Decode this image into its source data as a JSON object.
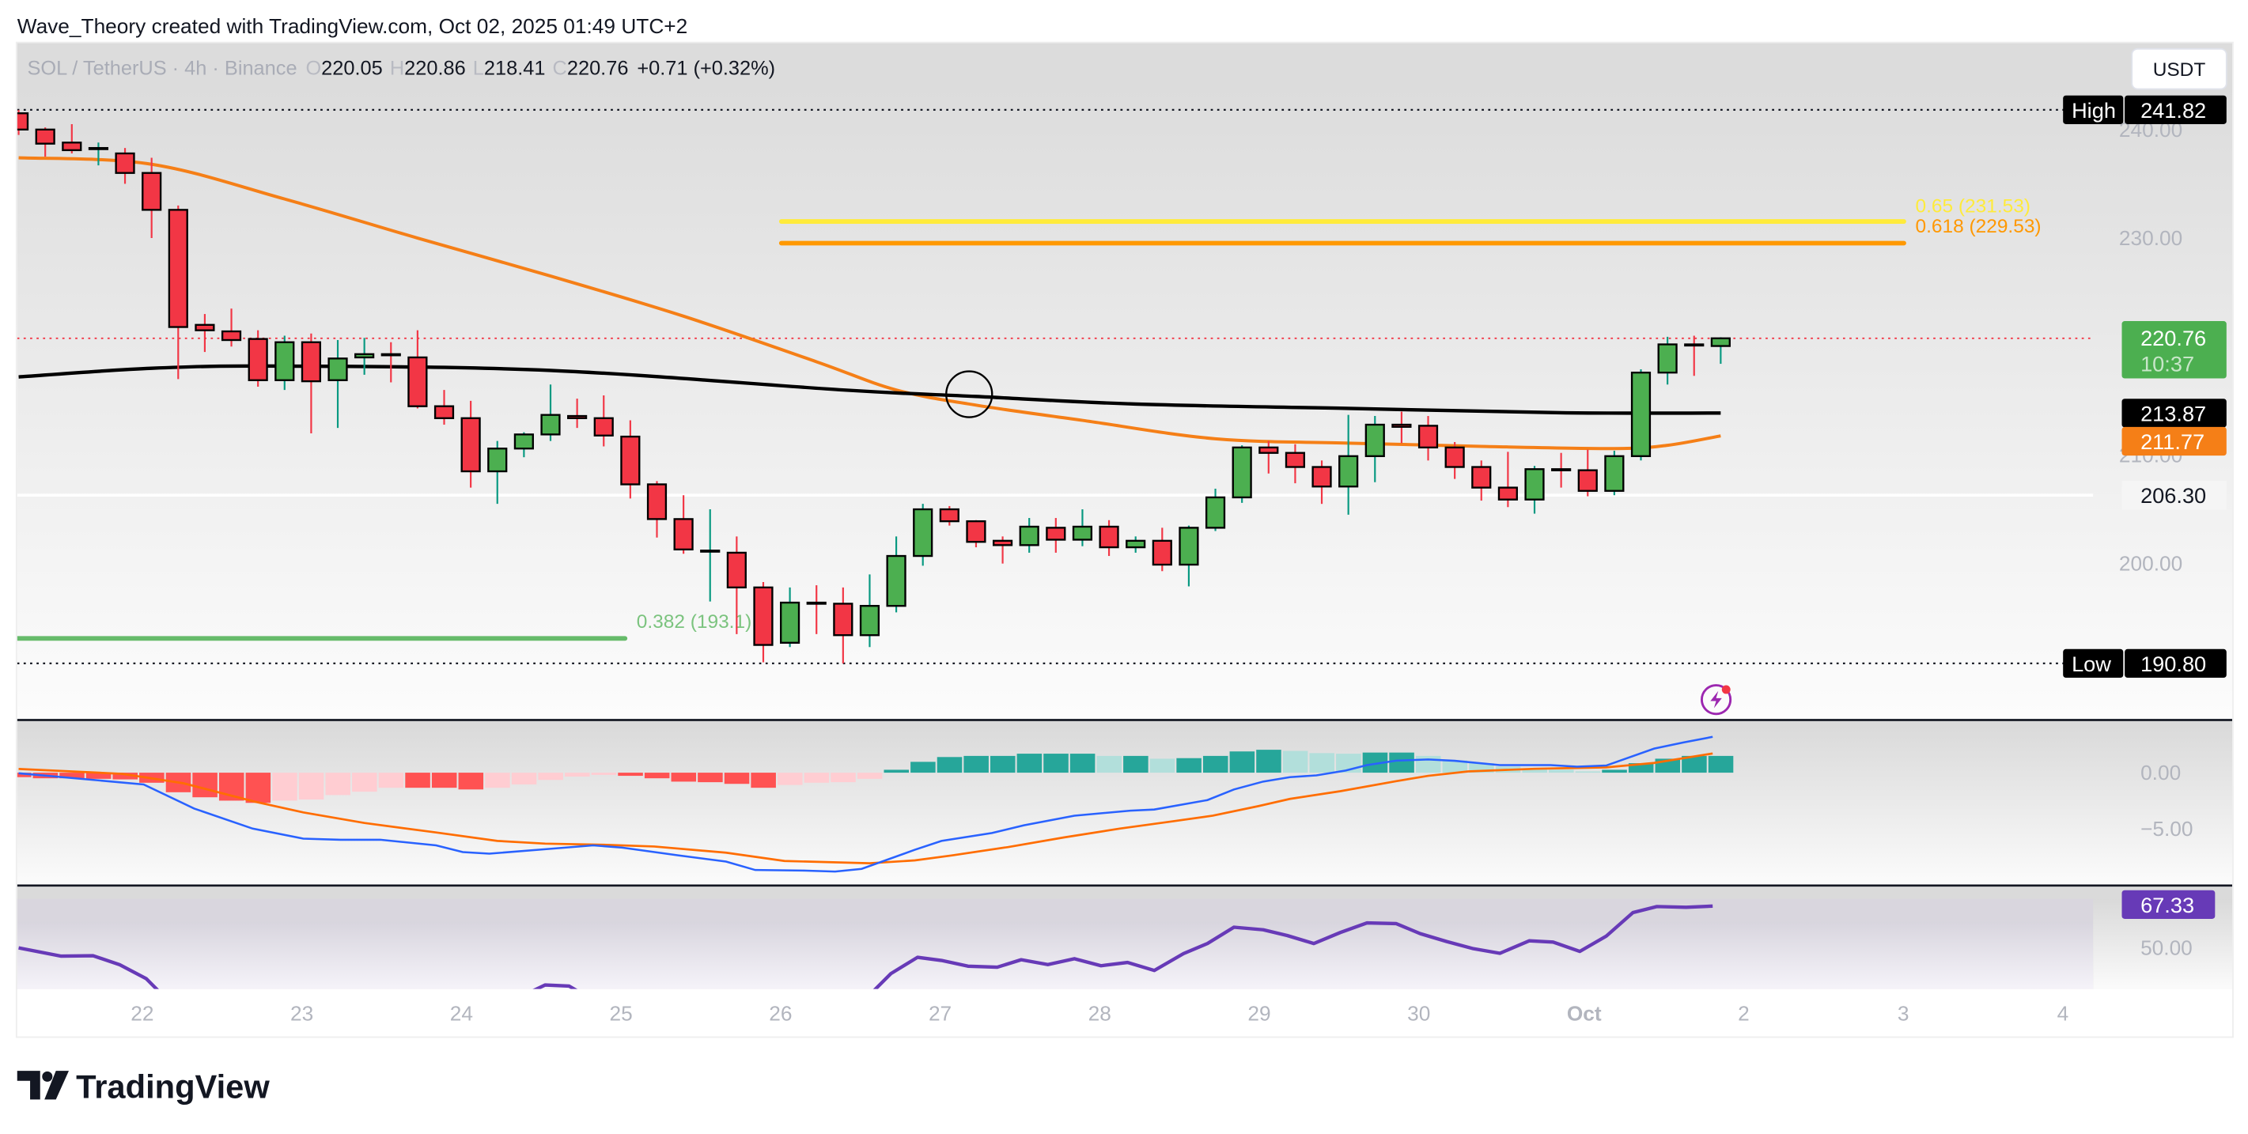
{
  "header": {
    "credit": "Wave_Theory created with TradingView.com, Oct 02, 2025 01:49 UTC+2"
  },
  "legend": {
    "symbol": "SOL / TetherUS · 4h · Binance",
    "o_label": "O",
    "o": "220.05",
    "h_label": "H",
    "h": "220.86",
    "l_label": "L",
    "l": "218.41",
    "c_label": "C",
    "c": "220.76",
    "change": "+0.71 (+0.32%)"
  },
  "currency_button": "USDT",
  "price_axis": {
    "ticks": [
      240,
      230,
      210,
      200
    ],
    "tick_labels": [
      "240.00",
      "230.00",
      "210.00",
      "200.00"
    ],
    "high": {
      "label": "High",
      "value": "241.82",
      "price": 241.82
    },
    "low": {
      "label": "Low",
      "value": "190.80",
      "price": 190.8
    },
    "current": {
      "value": "220.76",
      "price": 220.76,
      "countdown": "10:37",
      "color": "#4caf50"
    },
    "ema200": {
      "value": "213.87",
      "price": 213.87,
      "color": "#000000"
    },
    "ema50": {
      "value": "211.77",
      "price": 211.77,
      "color": "#f57f17"
    },
    "level": {
      "value": "206.30",
      "price": 206.3
    }
  },
  "fib": [
    {
      "label": "0.65 (231.53)",
      "price": 231.53,
      "color": "#ffeb3b"
    },
    {
      "label": "0.618 (229.53)",
      "price": 229.53,
      "color": "#ff9800"
    },
    {
      "label": "0.382 (193.1)",
      "price": 193.1,
      "color": "#66bb6a"
    }
  ],
  "time_axis": [
    "22",
    "23",
    "24",
    "25",
    "26",
    "27",
    "28",
    "29",
    "30",
    "Oct",
    "2",
    "3",
    "4"
  ],
  "colors": {
    "up": "#4caf50",
    "down": "#f23645",
    "wick_up": "#089981",
    "wick_down": "#f23645",
    "macd": "#2962ff",
    "signal": "#ff6d00",
    "hist_up_strong": "#26a69a",
    "hist_up_weak": "#b2dfdb",
    "hist_down_strong": "#ff5252",
    "hist_down_weak": "#ffcdd2",
    "rsi": "#673ab7"
  },
  "chart_data": {
    "type": "candlestick",
    "ylim": [
      188,
      245
    ],
    "candles_ohlc": [
      [
        241.5,
        241.8,
        239.5,
        240.0
      ],
      [
        240.0,
        240.2,
        237.5,
        238.7
      ],
      [
        238.8,
        240.5,
        237.8,
        238.1
      ],
      [
        238.2,
        238.8,
        236.7,
        238.3
      ],
      [
        237.8,
        238.3,
        235.0,
        236.0
      ],
      [
        236.0,
        237.4,
        230.0,
        232.6
      ],
      [
        232.6,
        233.0,
        217.0,
        221.8
      ],
      [
        222.0,
        223.0,
        219.5,
        221.5
      ],
      [
        221.4,
        223.5,
        220.0,
        220.6
      ],
      [
        220.7,
        221.5,
        216.3,
        216.9
      ],
      [
        216.9,
        221.0,
        216.0,
        220.4
      ],
      [
        220.4,
        221.2,
        212.0,
        216.8
      ],
      [
        216.9,
        220.6,
        212.5,
        218.9
      ],
      [
        219.0,
        220.8,
        217.4,
        219.3
      ],
      [
        219.3,
        220.4,
        216.7,
        219.2
      ],
      [
        219.0,
        221.5,
        214.3,
        214.5
      ],
      [
        214.5,
        216.0,
        212.8,
        213.4
      ],
      [
        213.4,
        215.0,
        207.0,
        208.5
      ],
      [
        208.5,
        211.3,
        205.5,
        210.6
      ],
      [
        210.6,
        212.1,
        209.8,
        211.9
      ],
      [
        211.9,
        216.5,
        211.3,
        213.7
      ],
      [
        213.6,
        215.2,
        212.5,
        213.4
      ],
      [
        213.4,
        215.5,
        210.8,
        211.8
      ],
      [
        211.7,
        213.2,
        206.0,
        207.3
      ],
      [
        207.3,
        207.6,
        202.4,
        204.1
      ],
      [
        204.1,
        206.3,
        200.9,
        201.3
      ],
      [
        201.2,
        205.0,
        196.5,
        201.2
      ],
      [
        201.0,
        202.5,
        193.5,
        197.8
      ],
      [
        197.8,
        198.3,
        190.9,
        192.5
      ],
      [
        192.7,
        197.8,
        192.3,
        196.4
      ],
      [
        196.4,
        198.0,
        193.5,
        196.3
      ],
      [
        196.3,
        197.8,
        190.8,
        193.4
      ],
      [
        193.4,
        199.0,
        192.3,
        196.1
      ],
      [
        196.1,
        202.5,
        195.5,
        200.7
      ],
      [
        200.7,
        205.5,
        199.8,
        205.0
      ],
      [
        205.0,
        205.3,
        203.5,
        203.9
      ],
      [
        203.9,
        204.0,
        201.5,
        202.0
      ],
      [
        202.1,
        202.5,
        200.0,
        201.7
      ],
      [
        201.7,
        204.2,
        201.0,
        203.4
      ],
      [
        203.3,
        204.2,
        201.0,
        202.2
      ],
      [
        202.2,
        205.0,
        201.6,
        203.4
      ],
      [
        203.4,
        204.0,
        200.7,
        201.5
      ],
      [
        201.5,
        202.5,
        201.0,
        202.1
      ],
      [
        202.1,
        203.3,
        199.3,
        199.9
      ],
      [
        199.9,
        203.5,
        197.9,
        203.3
      ],
      [
        203.3,
        206.9,
        203.0,
        206.1
      ],
      [
        206.1,
        210.9,
        205.6,
        210.7
      ],
      [
        210.7,
        211.3,
        208.3,
        210.2
      ],
      [
        210.2,
        211.0,
        207.4,
        208.9
      ],
      [
        208.9,
        209.5,
        205.5,
        207.1
      ],
      [
        207.1,
        213.7,
        204.5,
        209.9
      ],
      [
        209.9,
        213.6,
        207.5,
        212.8
      ],
      [
        212.8,
        214.0,
        211.1,
        212.6
      ],
      [
        212.7,
        213.6,
        209.5,
        210.7
      ],
      [
        210.7,
        211.2,
        207.8,
        208.9
      ],
      [
        208.9,
        209.5,
        205.8,
        207.0
      ],
      [
        207.0,
        210.3,
        205.2,
        205.9
      ],
      [
        205.9,
        209.0,
        204.6,
        208.7
      ],
      [
        208.7,
        210.2,
        207.0,
        208.6
      ],
      [
        208.6,
        210.5,
        206.2,
        206.7
      ],
      [
        206.7,
        210.4,
        206.3,
        209.9
      ],
      [
        209.9,
        217.9,
        209.5,
        217.6
      ],
      [
        217.6,
        220.9,
        216.5,
        220.2
      ],
      [
        220.2,
        221.0,
        217.3,
        220.1
      ],
      [
        220.05,
        220.86,
        218.41,
        220.76
      ]
    ],
    "ema_orange": [
      [
        0,
        237.4
      ],
      [
        5,
        236.8
      ],
      [
        10,
        233.6
      ],
      [
        15,
        230.0
      ],
      [
        20,
        226.5
      ],
      [
        25,
        222.8
      ],
      [
        30,
        218.6
      ],
      [
        33,
        216.0
      ],
      [
        36,
        214.6
      ],
      [
        40,
        213.2
      ],
      [
        45,
        211.5
      ],
      [
        50,
        211.1
      ],
      [
        55,
        210.8
      ],
      [
        60,
        210.6
      ],
      [
        62,
        210.9
      ],
      [
        64,
        211.77
      ]
    ],
    "ema_black": [
      [
        0,
        217.2
      ],
      [
        5,
        218.0
      ],
      [
        10,
        218.2
      ],
      [
        20,
        217.8
      ],
      [
        31,
        216.0
      ],
      [
        36,
        215.4
      ],
      [
        42,
        214.7
      ],
      [
        50,
        214.3
      ],
      [
        58,
        213.9
      ],
      [
        64,
        213.87
      ]
    ],
    "macd": {
      "yticks": [
        0,
        -5
      ],
      "ytick_labels": [
        "0.00",
        "−5.00"
      ],
      "histogram": [
        -0.4,
        -0.5,
        -0.5,
        -0.55,
        -0.6,
        -0.9,
        -1.75,
        -2.2,
        -2.5,
        -2.7,
        -2.5,
        -2.4,
        -2.0,
        -1.7,
        -1.35,
        -1.35,
        -1.35,
        -1.5,
        -1.35,
        -1.05,
        -0.65,
        -0.35,
        -0.2,
        -0.28,
        -0.5,
        -0.8,
        -0.85,
        -1.0,
        -1.35,
        -1.1,
        -0.9,
        -0.85,
        -0.55,
        0.26,
        0.97,
        1.4,
        1.5,
        1.5,
        1.7,
        1.7,
        1.7,
        1.5,
        1.5,
        1.25,
        1.3,
        1.5,
        1.9,
        2.05,
        1.95,
        1.75,
        1.7,
        1.8,
        1.8,
        1.5,
        1.1,
        0.85,
        0.55,
        0.4,
        0.26,
        0.12,
        0.26,
        0.85,
        1.25,
        1.5,
        1.5
      ],
      "macd_line": [
        [
          0,
          -0.05
        ],
        [
          4.7,
          -1.05
        ],
        [
          6.6,
          -3.2
        ],
        [
          8.8,
          -5.0
        ],
        [
          10.7,
          -5.9
        ],
        [
          12.1,
          -6.0
        ],
        [
          13.6,
          -6.0
        ],
        [
          15.7,
          -6.5
        ],
        [
          16.7,
          -7.1
        ],
        [
          17.7,
          -7.25
        ],
        [
          19.8,
          -6.85
        ],
        [
          21.6,
          -6.5
        ],
        [
          22.7,
          -6.7
        ],
        [
          24.8,
          -7.4
        ],
        [
          26.6,
          -7.95
        ],
        [
          27.7,
          -8.7
        ],
        [
          29.5,
          -8.75
        ],
        [
          30.7,
          -8.85
        ],
        [
          31.7,
          -8.6
        ],
        [
          33.7,
          -6.9
        ],
        [
          34.7,
          -6.1
        ],
        [
          36.6,
          -5.4
        ],
        [
          37.8,
          -4.7
        ],
        [
          39.7,
          -3.85
        ],
        [
          41.8,
          -3.4
        ],
        [
          42.7,
          -3.3
        ],
        [
          44.7,
          -2.45
        ],
        [
          45.7,
          -1.5
        ],
        [
          46.8,
          -0.8
        ],
        [
          47.8,
          -0.4
        ],
        [
          48.8,
          -0.24
        ],
        [
          49.9,
          0.19
        ],
        [
          50.7,
          0.68
        ],
        [
          51.8,
          1.08
        ],
        [
          53,
          1.18
        ],
        [
          54,
          1.06
        ],
        [
          55.7,
          0.68
        ],
        [
          57.6,
          0.68
        ],
        [
          58.6,
          0.54
        ],
        [
          59.7,
          0.64
        ],
        [
          61.5,
          2.15
        ],
        [
          62.6,
          2.7
        ],
        [
          63.7,
          3.2
        ]
      ],
      "signal_line": [
        [
          0,
          0.33
        ],
        [
          3.9,
          -0.1
        ],
        [
          6.2,
          -0.95
        ],
        [
          8.9,
          -2.6
        ],
        [
          10.7,
          -3.55
        ],
        [
          13,
          -4.5
        ],
        [
          15.7,
          -5.35
        ],
        [
          18,
          -6.1
        ],
        [
          19.8,
          -6.35
        ],
        [
          22,
          -6.45
        ],
        [
          23.9,
          -6.6
        ],
        [
          26.6,
          -7.15
        ],
        [
          28.8,
          -7.9
        ],
        [
          32,
          -8.1
        ],
        [
          33.7,
          -7.85
        ],
        [
          35.1,
          -7.4
        ],
        [
          37.2,
          -6.65
        ],
        [
          39.3,
          -5.8
        ],
        [
          41.4,
          -5.0
        ],
        [
          43.4,
          -4.35
        ],
        [
          44.9,
          -3.85
        ],
        [
          46.6,
          -3.0
        ],
        [
          47.8,
          -2.35
        ],
        [
          49.7,
          -1.65
        ],
        [
          51.8,
          -0.75
        ],
        [
          53,
          -0.28
        ],
        [
          54.5,
          0.12
        ],
        [
          57,
          0.35
        ],
        [
          59.7,
          0.47
        ],
        [
          61.5,
          0.87
        ],
        [
          63.7,
          1.72
        ]
      ]
    },
    "rsi": {
      "value_label": "67.33",
      "yticks": [
        50
      ],
      "ytick_labels": [
        "50.00"
      ],
      "line": [
        [
          0,
          49.9
        ],
        [
          1.6,
          46.4
        ],
        [
          2.8,
          46.6
        ],
        [
          3.8,
          42.8
        ],
        [
          4.8,
          37
        ],
        [
          5.6,
          28
        ],
        [
          18.6,
          28
        ],
        [
          19.8,
          34.4
        ],
        [
          20.7,
          33.9
        ],
        [
          21.6,
          28
        ],
        [
          31.8,
          28
        ],
        [
          32.8,
          39.1
        ],
        [
          33.8,
          45.9
        ],
        [
          34.7,
          44.6
        ],
        [
          35.7,
          42.2
        ],
        [
          36.8,
          41.8
        ],
        [
          37.7,
          44.9
        ],
        [
          38.7,
          42.9
        ],
        [
          39.7,
          45.3
        ],
        [
          40.7,
          42.4
        ],
        [
          41.7,
          43.8
        ],
        [
          42.7,
          40.4
        ],
        [
          43.8,
          47.5
        ],
        [
          44.7,
          51.7
        ],
        [
          45.7,
          58.5
        ],
        [
          46.8,
          57.4
        ],
        [
          47.7,
          55
        ],
        [
          48.7,
          51.7
        ],
        [
          49.7,
          56.3
        ],
        [
          50.7,
          60.3
        ],
        [
          51.8,
          60
        ],
        [
          52.7,
          55.8
        ],
        [
          53.7,
          52.5
        ],
        [
          54.7,
          49.5
        ],
        [
          55.7,
          47.6
        ],
        [
          56.8,
          52.8
        ],
        [
          57.7,
          52.3
        ],
        [
          58.7,
          48.4
        ],
        [
          59.7,
          54.8
        ],
        [
          60.7,
          64.6
        ],
        [
          61.6,
          67.1
        ],
        [
          62.7,
          66.8
        ],
        [
          63.7,
          67.33
        ]
      ]
    }
  },
  "logo": {
    "text": "TradingView"
  }
}
